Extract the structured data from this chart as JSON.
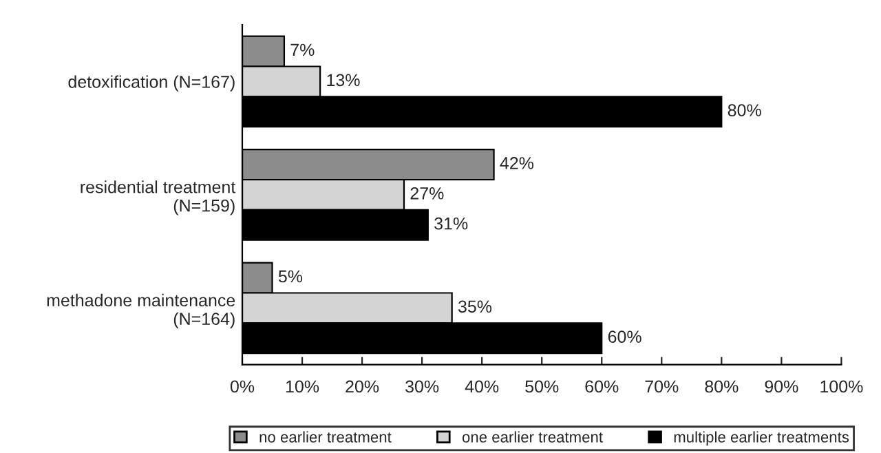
{
  "chart_data": {
    "type": "bar",
    "orientation": "horizontal",
    "categories": [
      "detoxification (N=167)",
      "residential treatment\n(N=159)",
      "methadone maintenance\n(N=164)"
    ],
    "series": [
      {
        "name": "no earlier treatment",
        "color": "#8c8c8c",
        "values": [
          7,
          42,
          5
        ],
        "value_labels": [
          "7%",
          "42%",
          "5%"
        ]
      },
      {
        "name": "one earlier treatment",
        "color": "#d4d4d4",
        "values": [
          13,
          27,
          35
        ],
        "value_labels": [
          "13%",
          "27%",
          "35%"
        ]
      },
      {
        "name": "multiple earlier treatments",
        "color": "#000000",
        "values": [
          80,
          31,
          60
        ],
        "value_labels": [
          "80%",
          "31%",
          "60%"
        ]
      }
    ],
    "xlim": [
      0,
      100
    ],
    "xticks": [
      {
        "value": 0,
        "label": "0%"
      },
      {
        "value": 10,
        "label": "10%"
      },
      {
        "value": 20,
        "label": "20%"
      },
      {
        "value": 30,
        "label": "30%"
      },
      {
        "value": 40,
        "label": "40%"
      },
      {
        "value": 50,
        "label": "50%"
      },
      {
        "value": 60,
        "label": "60%"
      },
      {
        "value": 70,
        "label": "70%"
      },
      {
        "value": 80,
        "label": "80%"
      },
      {
        "value": 90,
        "label": "90%"
      },
      {
        "value": 100,
        "label": "100%"
      }
    ],
    "grid": false,
    "legend": "bottom"
  }
}
